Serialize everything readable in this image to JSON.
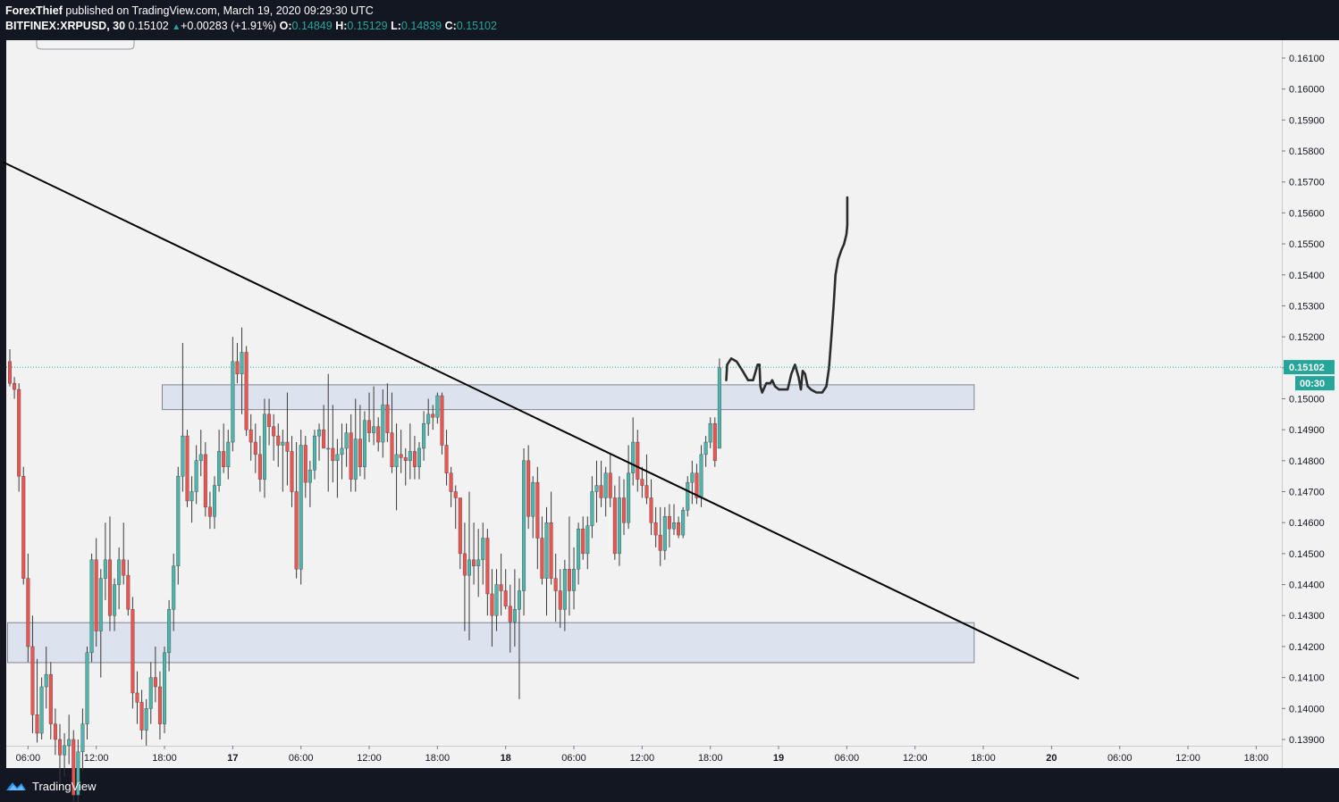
{
  "header": {
    "author": "ForexThief",
    "published_text": " published on TradingView.com, March 19, 2020 09:29:30 UTC",
    "symbol": "BITFINEX:XRPUSD, 30",
    "last": "0.15102",
    "change": "+0.00283 (+1.91%)",
    "o_label": "O:",
    "o_value": "0.14849",
    "h_label": "H:",
    "h_value": "0.15129",
    "l_label": "L:",
    "l_value": "0.14839",
    "c_label": "C:",
    "c_value": "0.15102"
  },
  "footer": {
    "brand": "TradingView"
  },
  "colors": {
    "background": "#131722",
    "chart_bg": "#f2f2f2",
    "up": "#4db6ac",
    "down": "#ef5350",
    "zone_fill": "#dde3ee",
    "price_label_bg": "#26a69a"
  },
  "chart_data": {
    "type": "candlestick",
    "ylim": [
      0.1389,
      0.1616
    ],
    "y_ticks": [
      "0.16100",
      "0.16000",
      "0.15900",
      "0.15800",
      "0.15700",
      "0.15600",
      "0.15500",
      "0.15400",
      "0.15300",
      "0.15200",
      "0.15100",
      "0.15000",
      "0.14900",
      "0.14800",
      "0.14700",
      "0.14600",
      "0.14500",
      "0.14400",
      "0.14300",
      "0.14200",
      "0.14100",
      "0.14000",
      "0.13900"
    ],
    "x_ticks": [
      "06:00",
      "12:00",
      "18:00",
      "17",
      "06:00",
      "12:00",
      "18:00",
      "18",
      "06:00",
      "12:00",
      "18:00",
      "19",
      "06:00",
      "12:00",
      "18:00",
      "20",
      "06:00",
      "12:00",
      "18:00"
    ],
    "last_price_label": "0.15102",
    "countdown_label": "00:30",
    "last_price": 0.15102,
    "candles": [
      [
        0.1512,
        0.1516,
        0.1504,
        0.1505
      ],
      [
        0.1505,
        0.1507,
        0.15,
        0.1503
      ],
      [
        0.1503,
        0.1505,
        0.147,
        0.1475
      ],
      [
        0.1475,
        0.1478,
        0.144,
        0.1442
      ],
      [
        0.1442,
        0.145,
        0.1415,
        0.142
      ],
      [
        0.142,
        0.143,
        0.1392,
        0.1398
      ],
      [
        0.1398,
        0.1416,
        0.1389,
        0.1392
      ],
      [
        0.1392,
        0.141,
        0.139,
        0.1407
      ],
      [
        0.1407,
        0.142,
        0.14,
        0.1411
      ],
      [
        0.1411,
        0.1415,
        0.139,
        0.1395
      ],
      [
        0.1395,
        0.14,
        0.1385,
        0.139
      ],
      [
        0.139,
        0.1395,
        0.1375,
        0.1385
      ],
      [
        0.1385,
        0.1392,
        0.1378,
        0.1388
      ],
      [
        0.1388,
        0.1398,
        0.1382,
        0.139
      ],
      [
        0.139,
        0.1393,
        0.137,
        0.1372
      ],
      [
        0.1372,
        0.139,
        0.1368,
        0.1386
      ],
      [
        0.1386,
        0.14,
        0.138,
        0.1395
      ],
      [
        0.1395,
        0.142,
        0.139,
        0.1418
      ],
      [
        0.1418,
        0.145,
        0.1415,
        0.1448
      ],
      [
        0.1448,
        0.1455,
        0.142,
        0.1425
      ],
      [
        0.1425,
        0.1445,
        0.141,
        0.1442
      ],
      [
        0.1442,
        0.146,
        0.1435,
        0.1448
      ],
      [
        0.1448,
        0.1462,
        0.1425,
        0.143
      ],
      [
        0.143,
        0.1442,
        0.1425,
        0.144
      ],
      [
        0.144,
        0.1452,
        0.1432,
        0.1448
      ],
      [
        0.1448,
        0.146,
        0.144,
        0.1443
      ],
      [
        0.1443,
        0.1448,
        0.143,
        0.1432
      ],
      [
        0.1432,
        0.1436,
        0.14,
        0.1405
      ],
      [
        0.1405,
        0.1412,
        0.1395,
        0.1402
      ],
      [
        0.1402,
        0.1406,
        0.139,
        0.1393
      ],
      [
        0.1393,
        0.1403,
        0.1388,
        0.14
      ],
      [
        0.14,
        0.1415,
        0.1395,
        0.141
      ],
      [
        0.141,
        0.142,
        0.1402,
        0.1407
      ],
      [
        0.1407,
        0.1412,
        0.139,
        0.1395
      ],
      [
        0.1395,
        0.142,
        0.1392,
        0.1418
      ],
      [
        0.1418,
        0.1435,
        0.1412,
        0.1432
      ],
      [
        0.1432,
        0.145,
        0.1425,
        0.1446
      ],
      [
        0.1446,
        0.1478,
        0.144,
        0.1475
      ],
      [
        0.1475,
        0.1518,
        0.147,
        0.1488
      ],
      [
        0.1488,
        0.149,
        0.1465,
        0.1467
      ],
      [
        0.1467,
        0.1475,
        0.146,
        0.147
      ],
      [
        0.147,
        0.1485,
        0.1466,
        0.148
      ],
      [
        0.148,
        0.149,
        0.1475,
        0.1482
      ],
      [
        0.1482,
        0.1486,
        0.1462,
        0.1465
      ],
      [
        0.1465,
        0.147,
        0.1458,
        0.1462
      ],
      [
        0.1462,
        0.1475,
        0.1458,
        0.1472
      ],
      [
        0.1472,
        0.149,
        0.147,
        0.1483
      ],
      [
        0.1483,
        0.1492,
        0.1476,
        0.1478
      ],
      [
        0.1478,
        0.149,
        0.1474,
        0.1486
      ],
      [
        0.1486,
        0.152,
        0.1483,
        0.1512
      ],
      [
        0.1512,
        0.1518,
        0.1505,
        0.1508
      ],
      [
        0.1508,
        0.1523,
        0.1495,
        0.1515
      ],
      [
        0.1515,
        0.1517,
        0.1488,
        0.149
      ],
      [
        0.149,
        0.1495,
        0.148,
        0.1486
      ],
      [
        0.1486,
        0.1492,
        0.1476,
        0.1482
      ],
      [
        0.1482,
        0.1488,
        0.147,
        0.1474
      ],
      [
        0.1474,
        0.15,
        0.1468,
        0.1495
      ],
      [
        0.1495,
        0.15,
        0.1485,
        0.1491
      ],
      [
        0.1491,
        0.1495,
        0.148,
        0.1488
      ],
      [
        0.1488,
        0.1492,
        0.1478,
        0.1485
      ],
      [
        0.1485,
        0.149,
        0.147,
        0.1486
      ],
      [
        0.1486,
        0.1502,
        0.1472,
        0.1483
      ],
      [
        0.1483,
        0.1488,
        0.1465,
        0.147
      ],
      [
        0.147,
        0.1486,
        0.1442,
        0.1445
      ],
      [
        0.1445,
        0.149,
        0.144,
        0.1485
      ],
      [
        0.1485,
        0.1488,
        0.1468,
        0.1473
      ],
      [
        0.1473,
        0.148,
        0.1465,
        0.1477
      ],
      [
        0.1477,
        0.149,
        0.1474,
        0.1488
      ],
      [
        0.1488,
        0.1492,
        0.148,
        0.149
      ],
      [
        0.149,
        0.1498,
        0.1485,
        0.1484
      ],
      [
        0.1484,
        0.1508,
        0.147,
        0.1484
      ],
      [
        0.1484,
        0.1498,
        0.1473,
        0.148
      ],
      [
        0.148,
        0.1487,
        0.1468,
        0.1482
      ],
      [
        0.1482,
        0.1492,
        0.1474,
        0.1484
      ],
      [
        0.1484,
        0.1492,
        0.1478,
        0.1489
      ],
      [
        0.1489,
        0.1495,
        0.147,
        0.1474
      ],
      [
        0.1474,
        0.15,
        0.147,
        0.1487
      ],
      [
        0.1487,
        0.1498,
        0.1475,
        0.1478
      ],
      [
        0.1478,
        0.1496,
        0.1474,
        0.1493
      ],
      [
        0.1493,
        0.1502,
        0.1486,
        0.1489
      ],
      [
        0.1489,
        0.1504,
        0.1485,
        0.1491
      ],
      [
        0.1491,
        0.1494,
        0.1483,
        0.1486
      ],
      [
        0.1486,
        0.1503,
        0.1481,
        0.1498
      ],
      [
        0.1498,
        0.1505,
        0.1486,
        0.1489
      ],
      [
        0.1489,
        0.1502,
        0.1476,
        0.1478
      ],
      [
        0.1478,
        0.1492,
        0.1464,
        0.1482
      ],
      [
        0.1482,
        0.149,
        0.1476,
        0.1481
      ],
      [
        0.1481,
        0.1484,
        0.1472,
        0.148
      ],
      [
        0.148,
        0.1492,
        0.1474,
        0.1483
      ],
      [
        0.1483,
        0.1488,
        0.1474,
        0.1478
      ],
      [
        0.1478,
        0.1486,
        0.1474,
        0.1484
      ],
      [
        0.1484,
        0.1496,
        0.148,
        0.1492
      ],
      [
        0.1492,
        0.15,
        0.1488,
        0.1495
      ],
      [
        0.1495,
        0.1498,
        0.149,
        0.1494
      ],
      [
        0.1494,
        0.1502,
        0.1492,
        0.1501
      ],
      [
        0.1501,
        0.1502,
        0.1482,
        0.1485
      ],
      [
        0.1485,
        0.149,
        0.1472,
        0.1476
      ],
      [
        0.1476,
        0.1478,
        0.1465,
        0.147
      ],
      [
        0.147,
        0.1472,
        0.1458,
        0.1468
      ],
      [
        0.1468,
        0.1468,
        0.1445,
        0.145
      ],
      [
        0.145,
        0.146,
        0.1425,
        0.1443
      ],
      [
        0.1443,
        0.147,
        0.1422,
        0.1448
      ],
      [
        0.1448,
        0.146,
        0.144,
        0.1446
      ],
      [
        0.1446,
        0.1458,
        0.1436,
        0.1448
      ],
      [
        0.1448,
        0.146,
        0.144,
        0.1455
      ],
      [
        0.1455,
        0.1458,
        0.143,
        0.1437
      ],
      [
        0.1437,
        0.1445,
        0.142,
        0.143
      ],
      [
        0.143,
        0.1445,
        0.1425,
        0.144
      ],
      [
        0.144,
        0.145,
        0.143,
        0.1438
      ],
      [
        0.1438,
        0.1445,
        0.1432,
        0.1433
      ],
      [
        0.1433,
        0.144,
        0.1418,
        0.1428
      ],
      [
        0.1428,
        0.1445,
        0.142,
        0.1432
      ],
      [
        0.1432,
        0.1442,
        0.1403,
        0.1438
      ],
      [
        0.1438,
        0.1484,
        0.143,
        0.148
      ],
      [
        0.148,
        0.1485,
        0.1458,
        0.1462
      ],
      [
        0.1462,
        0.1475,
        0.1455,
        0.1473
      ],
      [
        0.1473,
        0.1478,
        0.1445,
        0.1455
      ],
      [
        0.1455,
        0.1462,
        0.144,
        0.1442
      ],
      [
        0.1442,
        0.1465,
        0.143,
        0.146
      ],
      [
        0.146,
        0.147,
        0.144,
        0.1442
      ],
      [
        0.1442,
        0.145,
        0.1428,
        0.1438
      ],
      [
        0.1438,
        0.1445,
        0.1426,
        0.1432
      ],
      [
        0.1432,
        0.1448,
        0.1425,
        0.1445
      ],
      [
        0.1445,
        0.1462,
        0.143,
        0.1438
      ],
      [
        0.1438,
        0.1452,
        0.1432,
        0.1445
      ],
      [
        0.1445,
        0.146,
        0.144,
        0.1458
      ],
      [
        0.1458,
        0.1462,
        0.1448,
        0.145
      ],
      [
        0.145,
        0.1462,
        0.1445,
        0.1459
      ],
      [
        0.1459,
        0.1475,
        0.1455,
        0.147
      ],
      [
        0.147,
        0.148,
        0.146,
        0.1472
      ],
      [
        0.1472,
        0.148,
        0.1465,
        0.1468
      ],
      [
        0.1468,
        0.1478,
        0.1462,
        0.1476
      ],
      [
        0.1476,
        0.1482,
        0.1465,
        0.1468
      ],
      [
        0.1468,
        0.1472,
        0.1448,
        0.145
      ],
      [
        0.145,
        0.1475,
        0.1446,
        0.1468
      ],
      [
        0.1468,
        0.1474,
        0.1456,
        0.146
      ],
      [
        0.146,
        0.1485,
        0.1458,
        0.1476
      ],
      [
        0.1476,
        0.1494,
        0.1472,
        0.1486
      ],
      [
        0.1486,
        0.149,
        0.147,
        0.1474
      ],
      [
        0.1474,
        0.1478,
        0.1468,
        0.1472
      ],
      [
        0.1472,
        0.1482,
        0.1466,
        0.1468
      ],
      [
        0.1468,
        0.1474,
        0.1456,
        0.146
      ],
      [
        0.146,
        0.1465,
        0.1452,
        0.1456
      ],
      [
        0.1456,
        0.1465,
        0.1446,
        0.1451
      ],
      [
        0.1451,
        0.1465,
        0.1448,
        0.1462
      ],
      [
        0.1462,
        0.1466,
        0.1452,
        0.1458
      ],
      [
        0.1458,
        0.1466,
        0.1456,
        0.146
      ],
      [
        0.146,
        0.1462,
        0.1455,
        0.1456
      ],
      [
        0.1456,
        0.1465,
        0.1455,
        0.1464
      ],
      [
        0.1464,
        0.1475,
        0.1462,
        0.1473
      ],
      [
        0.1473,
        0.148,
        0.1466,
        0.1476
      ],
      [
        0.1476,
        0.1479,
        0.1466,
        0.1468
      ],
      [
        0.1468,
        0.1485,
        0.1465,
        0.1482
      ],
      [
        0.1482,
        0.1488,
        0.1478,
        0.1486
      ],
      [
        0.1486,
        0.1494,
        0.1484,
        0.1492
      ],
      [
        0.1492,
        0.1494,
        0.1478,
        0.148
      ],
      [
        0.1484,
        0.1513,
        0.1484,
        0.151
      ]
    ],
    "zones": [
      {
        "t0": 33.5,
        "t1": 212.0,
        "y0": 0.14965,
        "y1": 0.15045
      },
      {
        "t0": -0.5,
        "t1": 212.0,
        "y0": 0.14148,
        "y1": 0.14277
      }
    ],
    "trendline": {
      "t0": -1.5,
      "p0": 0.15764,
      "t1": 235.0,
      "p1": 0.14096
    },
    "projection": [
      [
        157.5,
        0.1506
      ],
      [
        157.7,
        0.1511
      ],
      [
        158.6,
        0.1513
      ],
      [
        159.8,
        0.1512
      ],
      [
        161.1,
        0.1509
      ],
      [
        162.3,
        0.1506
      ],
      [
        163.4,
        0.1506
      ],
      [
        164.4,
        0.1511
      ],
      [
        164.8,
        0.1511
      ],
      [
        165.0,
        0.1504
      ],
      [
        165.4,
        0.1502
      ],
      [
        166.3,
        0.1505
      ],
      [
        167.2,
        0.1505
      ],
      [
        167.6,
        0.1506
      ],
      [
        168.2,
        0.1504
      ],
      [
        169.1,
        0.1503
      ],
      [
        170.1,
        0.1503
      ],
      [
        171.0,
        0.1503
      ],
      [
        171.8,
        0.1508
      ],
      [
        172.6,
        0.1511
      ],
      [
        173.4,
        0.1507
      ],
      [
        173.9,
        0.1503
      ],
      [
        174.3,
        0.1509
      ],
      [
        174.8,
        0.1508
      ],
      [
        175.4,
        0.1504
      ],
      [
        176.1,
        0.1503
      ],
      [
        177.3,
        0.1502
      ],
      [
        178.6,
        0.1502
      ],
      [
        179.5,
        0.1504
      ],
      [
        180.1,
        0.151
      ],
      [
        180.6,
        0.152
      ],
      [
        181.1,
        0.153
      ],
      [
        181.5,
        0.154
      ],
      [
        182.1,
        0.1545
      ],
      [
        182.8,
        0.1548
      ],
      [
        183.4,
        0.155
      ],
      [
        183.9,
        0.1553
      ],
      [
        184.1,
        0.1556
      ],
      [
        184.1,
        0.1565
      ]
    ]
  }
}
